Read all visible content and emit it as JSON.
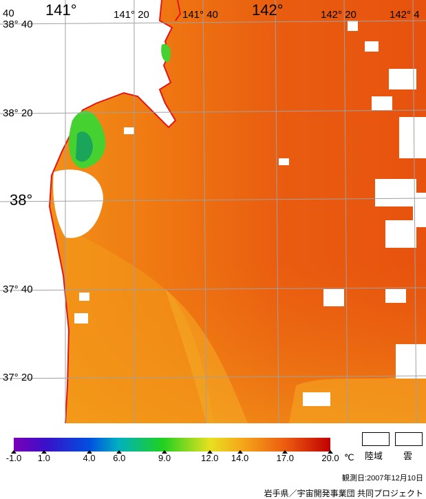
{
  "map": {
    "lon_labels": [
      {
        "text": "40",
        "size": "small"
      },
      {
        "text": "141°",
        "size": "big"
      },
      {
        "text": "141° 20",
        "size": "small"
      },
      {
        "text": "141° 40",
        "size": "small"
      },
      {
        "text": "142°",
        "size": "big"
      },
      {
        "text": "142° 20",
        "size": "small"
      },
      {
        "text": "142° 4",
        "size": "small"
      }
    ],
    "lat_labels": [
      {
        "text": "38° 40"
      },
      {
        "text": "38° 20"
      },
      {
        "text": "38°"
      },
      {
        "text": "37° 40"
      },
      {
        "text": "37° 20"
      }
    ],
    "colors": {
      "sea_warm": "#e8520e",
      "sea_mid": "#f07a12",
      "sea_cool": "#f5a21a",
      "coast": "#e31414",
      "grid": "#a0a0a0",
      "cloud_land": "#ffffff",
      "green": "#3ccf2a"
    }
  },
  "colorbar": {
    "ticks": [
      "-1.0",
      "1.0",
      "4.0",
      "6.0",
      "9.0",
      "12.0",
      "14.0",
      "17.0",
      "20.0"
    ],
    "tick_values": [
      -1,
      1,
      4,
      6,
      9,
      12,
      14,
      17,
      20
    ],
    "unit": "℃",
    "range": [
      -1,
      20
    ]
  },
  "legend": {
    "land_label": "陸域",
    "cloud_label": "雲"
  },
  "footer": {
    "observation_date": "観測日:2007年12月10日",
    "credit": "岩手県／宇宙開発事業団 共同プロジェクト"
  }
}
